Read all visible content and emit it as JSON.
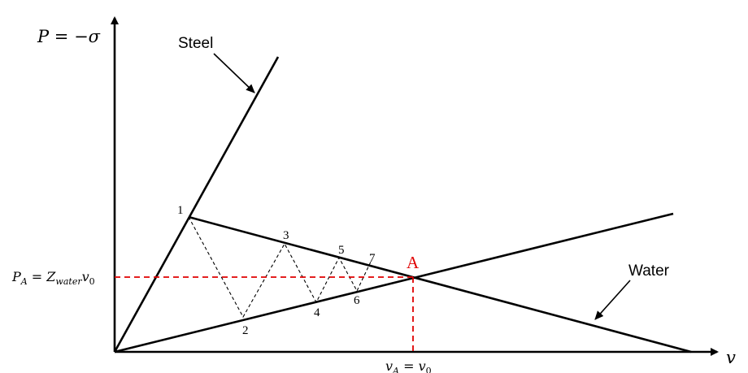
{
  "diagram": {
    "y_axis_label": "P = −σ",
    "x_axis_label": "v",
    "steel_label": "Steel",
    "water_label": "Water",
    "intersection_label": "A",
    "pa_label": "P_A = Z_water v_0",
    "va_label": "v_A = v_0",
    "points": [
      "1",
      "2",
      "3",
      "4",
      "5",
      "6",
      "7"
    ]
  },
  "colors": {
    "lines": "#000000",
    "highlight": "#e00000"
  }
}
